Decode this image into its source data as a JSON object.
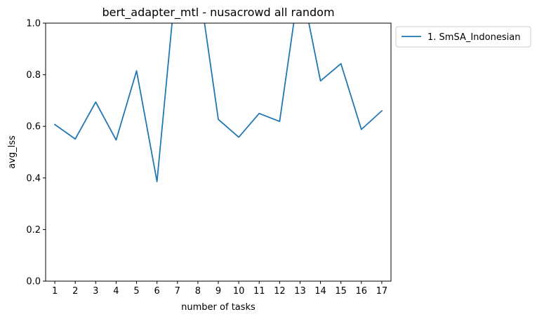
{
  "chart_data": {
    "type": "line",
    "title": "bert_adapter_mtl - nusacrowd all random",
    "xlabel": "number of tasks",
    "ylabel": "avg_lss",
    "x": [
      1,
      2,
      3,
      4,
      5,
      6,
      7,
      8,
      9,
      10,
      11,
      12,
      13,
      14,
      15,
      16,
      17
    ],
    "ylim": [
      0,
      1.0
    ],
    "yticks": [
      "0.0",
      "0.2",
      "0.4",
      "0.6",
      "0.8",
      "1.0"
    ],
    "xticks": [
      "1",
      "2",
      "3",
      "4",
      "5",
      "6",
      "7",
      "8",
      "9",
      "10",
      "11",
      "12",
      "13",
      "14",
      "15",
      "16",
      "17"
    ],
    "grid": false,
    "legend_position": "outside-top-right",
    "series": [
      {
        "name": "1. SmSA_Indonesian",
        "color": "#1f77b4",
        "values": [
          0.607,
          0.551,
          0.694,
          0.547,
          0.815,
          0.386,
          1.22,
          1.18,
          0.627,
          0.558,
          0.65,
          0.619,
          1.17,
          0.776,
          0.843,
          0.588,
          0.66
        ]
      }
    ]
  }
}
